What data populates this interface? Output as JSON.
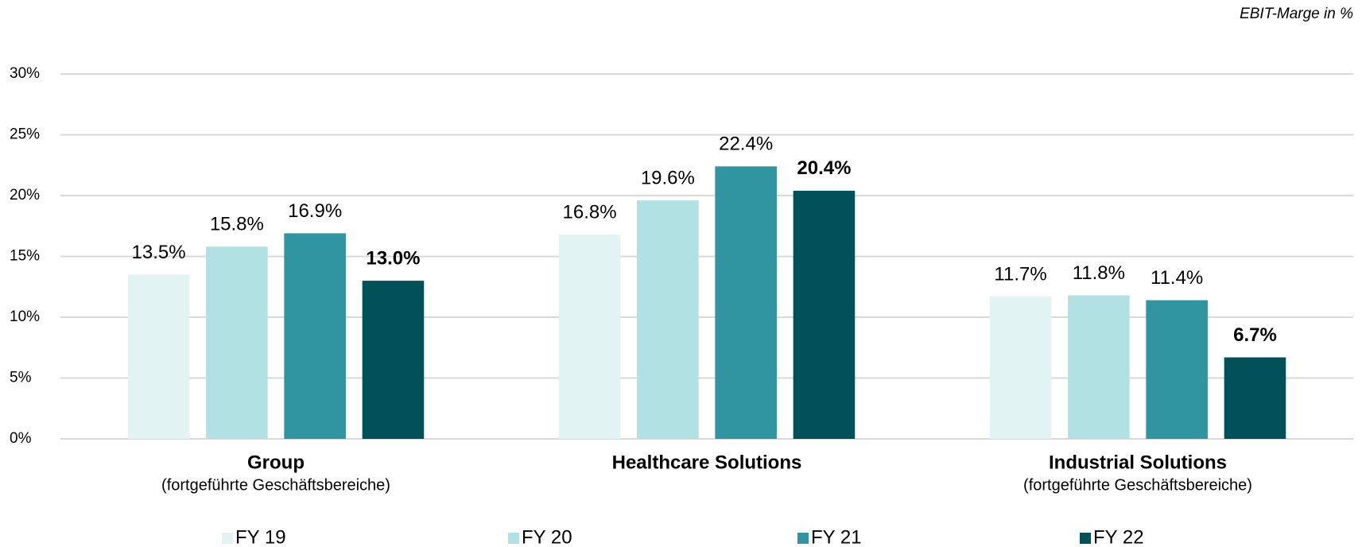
{
  "chart_data": {
    "type": "bar",
    "unit_note": "EBIT-Marge in %",
    "categories": [
      "Group",
      "Healthcare Solutions",
      "Industrial Solutions"
    ],
    "category_subtitles": [
      "(fortgeführte Geschäftsbereiche)",
      null,
      "(fortgeführte Geschäftsbereiche)"
    ],
    "series": [
      {
        "name": "FY 19",
        "color": "#e2f3f3",
        "values": [
          13.5,
          16.8,
          11.7
        ],
        "value_labels": [
          "13.5%",
          "16.8%",
          "11.7%"
        ]
      },
      {
        "name": "FY 20",
        "color": "#b2e1e4",
        "values": [
          15.8,
          19.6,
          11.8
        ],
        "value_labels": [
          "15.8%",
          "19.6%",
          "11.8%"
        ]
      },
      {
        "name": "FY 21",
        "color": "#3095a0",
        "values": [
          16.9,
          22.4,
          11.4
        ],
        "value_labels": [
          "16.9%",
          "22.4%",
          "11.4%"
        ]
      },
      {
        "name": "FY 22",
        "color": "#02505a",
        "values": [
          13.0,
          20.4,
          6.7
        ],
        "value_labels": [
          "13.0%",
          "20.4%",
          "6.7%"
        ]
      }
    ],
    "highlight_series": "FY 22",
    "ylim": [
      0,
      30
    ],
    "yticks": [
      {
        "value": 0,
        "label": "0%"
      },
      {
        "value": 5,
        "label": "5%"
      },
      {
        "value": 10,
        "label": "10%"
      },
      {
        "value": 15,
        "label": "15%"
      },
      {
        "value": 20,
        "label": "20%"
      },
      {
        "value": 25,
        "label": "25%"
      },
      {
        "value": 30,
        "label": "30%"
      }
    ],
    "grid": true,
    "legend": "bottom"
  }
}
